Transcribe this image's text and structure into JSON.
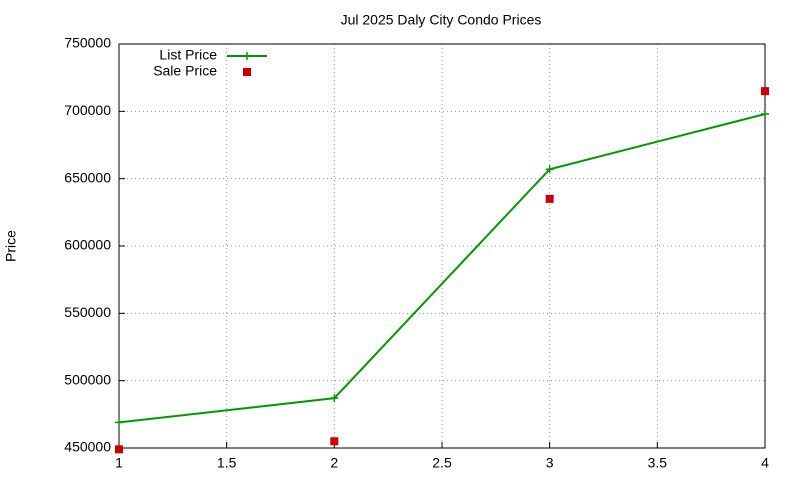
{
  "chart_data": {
    "type": "line",
    "title": "Jul 2025 Daly City Condo Prices",
    "ylabel": "Price",
    "x": [
      1,
      2,
      3,
      4
    ],
    "series": [
      {
        "name": "List Price",
        "color": "#009900",
        "line": true,
        "marker": "plus",
        "values": [
          469000,
          487000,
          657000,
          698000
        ]
      },
      {
        "name": "Sale Price",
        "color": "#cc0000",
        "line": false,
        "marker": "square",
        "values": [
          449000,
          455000,
          635000,
          715000
        ]
      }
    ],
    "xlim": [
      1,
      4
    ],
    "xticks": [
      1,
      1.5,
      2,
      2.5,
      3,
      3.5,
      4
    ],
    "ylim": [
      450000,
      750000
    ],
    "yticks": [
      450000,
      500000,
      550000,
      600000,
      650000,
      700000,
      750000
    ],
    "grid": true,
    "legend": "top-left"
  }
}
